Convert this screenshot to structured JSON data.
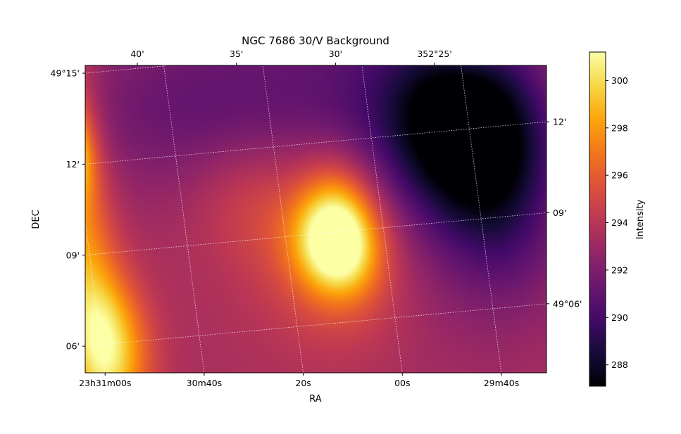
{
  "chart_data": {
    "type": "heatmap",
    "title": "NGC 7686 30/V Background",
    "xlabel": "RA",
    "ylabel": "DEC",
    "colorbar_label": "Intensity",
    "colormap": "inferno",
    "colorbar_range": [
      287.1,
      301.2
    ],
    "colorbar_ticks": [
      {
        "value": 288,
        "label": "288"
      },
      {
        "value": 290,
        "label": "290"
      },
      {
        "value": 292,
        "label": "292"
      },
      {
        "value": 294,
        "label": "294"
      },
      {
        "value": 296,
        "label": "296"
      },
      {
        "value": 298,
        "label": "298"
      },
      {
        "value": 300,
        "label": "300"
      }
    ],
    "bottom_ticks": [
      {
        "label": "23h31m00s",
        "ra_sec": 0
      },
      {
        "label": "30m40s",
        "ra_sec": -20
      },
      {
        "label": "20s",
        "ra_sec": -40
      },
      {
        "label": "00s",
        "ra_sec": -60
      },
      {
        "label": "29m40s",
        "ra_sec": -80
      }
    ],
    "top_ticks": [
      {
        "label": "40'",
        "ra_sec": -14.67
      },
      {
        "label": "35'",
        "ra_sec": -34.67
      },
      {
        "label": "30'",
        "ra_sec": -54.67
      },
      {
        "label": "352°25'",
        "ra_sec": -74.67
      }
    ],
    "left_ticks": [
      {
        "label": "49°15'",
        "dec_arcmin": 15
      },
      {
        "label": "12'",
        "dec_arcmin": 12
      },
      {
        "label": "09'",
        "dec_arcmin": 9
      },
      {
        "label": "06'",
        "dec_arcmin": 6
      }
    ],
    "right_ticks": [
      {
        "label": "12'",
        "dec_arcmin": 12
      },
      {
        "label": "09'",
        "dec_arcmin": 9
      },
      {
        "label": "49°06'",
        "dec_arcmin": 6
      }
    ],
    "grid": true,
    "background_level": 293.5,
    "features": [
      {
        "kind": "peak",
        "ra_sec": -50,
        "dec_arcmin": 8.6,
        "amplitude": 7.8,
        "width_ra_sec": 5.5,
        "width_dec_arcmin": 1.15
      },
      {
        "kind": "peak",
        "ra_sec": -50,
        "dec_arcmin": 8.6,
        "amplitude": 3.2,
        "width_ra_sec": 11,
        "width_dec_arcmin": 2.2
      },
      {
        "kind": "peak",
        "ra_sec": -52,
        "dec_arcmin": 10.0,
        "amplitude": 2.0,
        "width_ra_sec": 5,
        "width_dec_arcmin": 1.2
      },
      {
        "kind": "ridge",
        "ra_sec": 2,
        "dec_arcmin": 9.5,
        "amplitude": 4.5,
        "width_ra_sec": 5,
        "width_dec_arcmin": 6
      },
      {
        "kind": "peak",
        "ra_sec": 2,
        "dec_arcmin": 12.6,
        "amplitude": 6.0,
        "width_ra_sec": 3.5,
        "width_dec_arcmin": 1.1
      },
      {
        "kind": "peak",
        "ra_sec": -2,
        "dec_arcmin": 6.0,
        "amplitude": 5.0,
        "width_ra_sec": 5.5,
        "width_dec_arcmin": 1.6
      },
      {
        "kind": "dip",
        "ra_sec": -80,
        "dec_arcmin": 12.0,
        "amplitude": -6.3,
        "width_ra_sec": 10,
        "width_dec_arcmin": 1.9
      },
      {
        "kind": "dip",
        "ra_sec": -72,
        "dec_arcmin": 11.0,
        "amplitude": -2.6,
        "width_ra_sec": 16,
        "width_dec_arcmin": 3.5
      },
      {
        "kind": "dip",
        "ra_sec": -84,
        "dec_arcmin": 9.2,
        "amplitude": -2.0,
        "width_ra_sec": 8,
        "width_dec_arcmin": 2.2
      },
      {
        "kind": "dip",
        "ra_sec": -45,
        "dec_arcmin": 13.8,
        "amplitude": -1.6,
        "width_ra_sec": 30,
        "width_dec_arcmin": 2.2
      },
      {
        "kind": "dip",
        "ra_sec": -22,
        "dec_arcmin": 13.5,
        "amplitude": -1.2,
        "width_ra_sec": 20,
        "width_dec_arcmin": 2.0
      },
      {
        "kind": "peak",
        "ra_sec": -82,
        "dec_arcmin": 15.2,
        "amplitude": 2.2,
        "width_ra_sec": 5,
        "width_dec_arcmin": 0.8
      },
      {
        "kind": "peak",
        "ra_sec": -33,
        "dec_arcmin": 10.5,
        "amplitude": 1.2,
        "width_ra_sec": 8,
        "width_dec_arcmin": 1.5
      }
    ]
  }
}
